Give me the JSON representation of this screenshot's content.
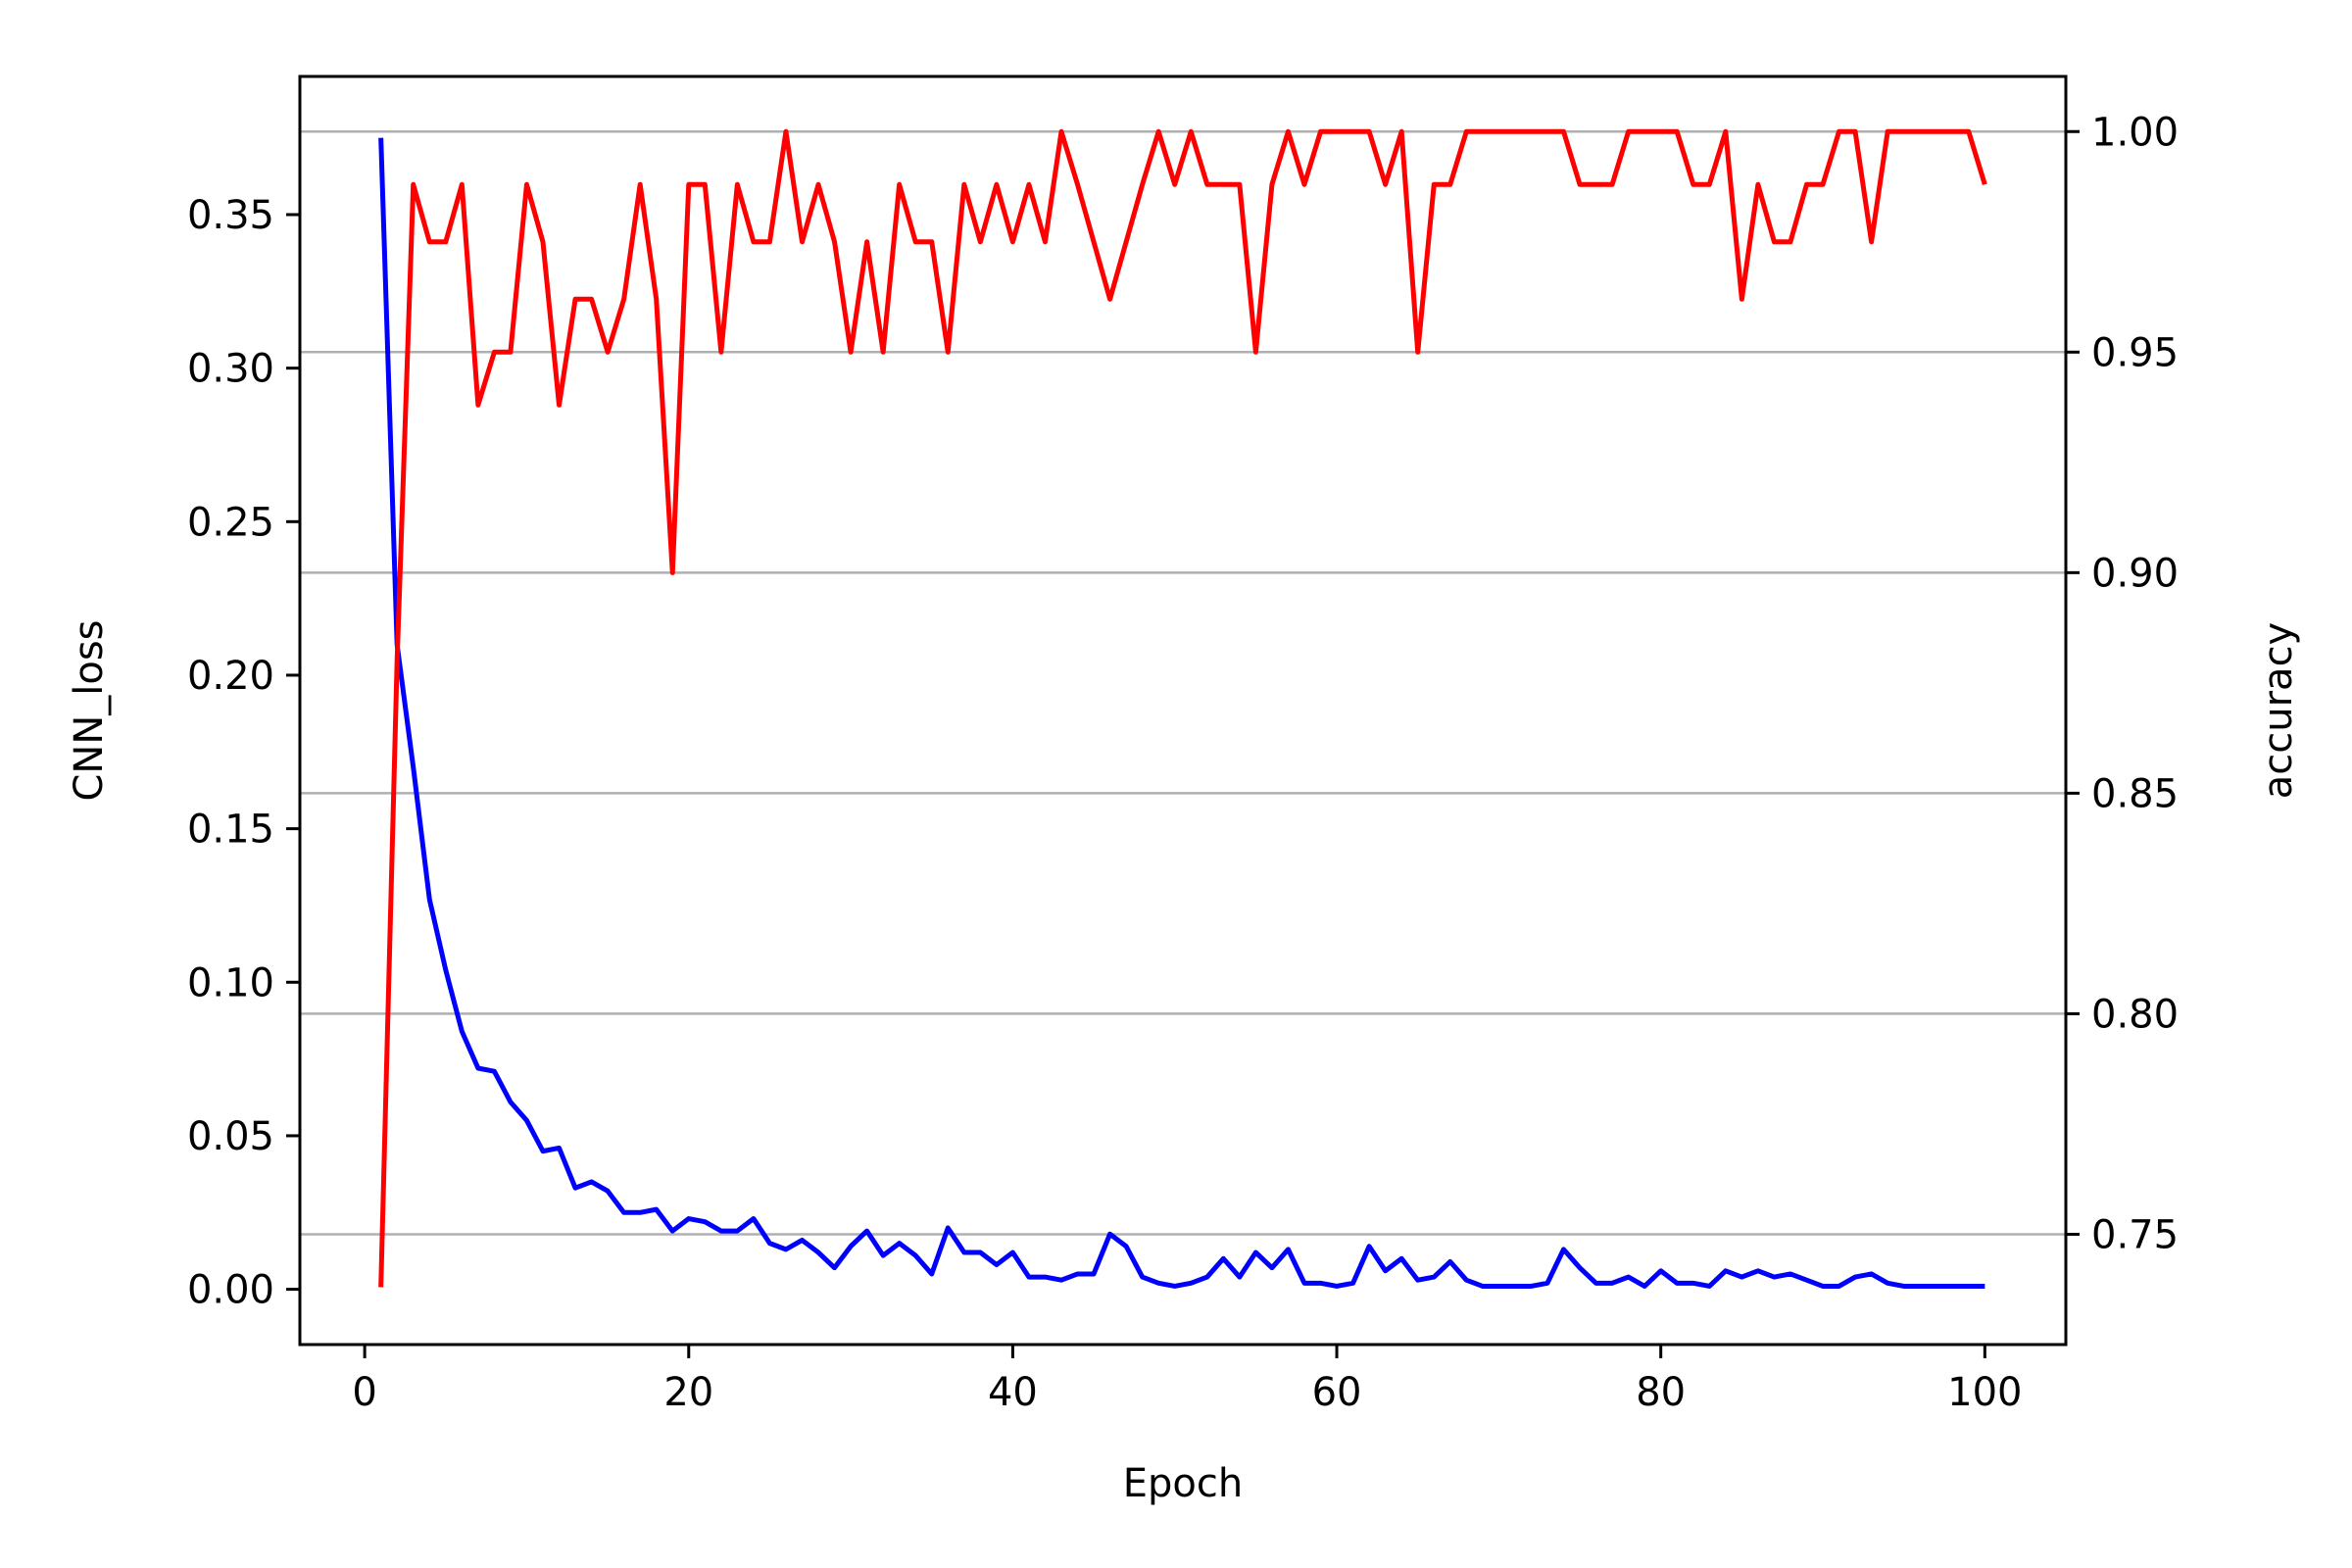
{
  "chart_data": {
    "type": "line",
    "title": "",
    "xlabel": "Epoch",
    "ylabel": "CNN_loss",
    "y2label": "accuracy",
    "xlim": [
      -4,
      105
    ],
    "ylim": [
      -0.018,
      0.395
    ],
    "y2lim": [
      0.725,
      1.0125
    ],
    "xticks": [
      "0",
      "20",
      "40",
      "60",
      "80",
      "100"
    ],
    "yticks": [
      "0.00",
      "0.05",
      "0.10",
      "0.15",
      "0.20",
      "0.25",
      "0.30",
      "0.35"
    ],
    "y2ticks": [
      "0.75",
      "0.80",
      "0.85",
      "0.90",
      "0.95",
      "1.00"
    ],
    "grid": "horizontal (right axis)",
    "series": [
      {
        "axis": "left",
        "color": "#0000ff",
        "x": [
          1,
          2,
          3,
          4,
          5,
          6,
          7,
          8,
          9,
          10,
          11,
          12,
          13,
          14,
          15,
          16,
          17,
          18,
          19,
          20,
          21,
          22,
          23,
          24,
          25,
          26,
          27,
          28,
          29,
          30,
          31,
          32,
          33,
          34,
          35,
          36,
          37,
          38,
          39,
          40,
          41,
          42,
          43,
          44,
          45,
          46,
          47,
          48,
          49,
          50,
          51,
          52,
          53,
          54,
          55,
          56,
          57,
          58,
          59,
          60,
          61,
          62,
          63,
          64,
          65,
          66,
          67,
          68,
          69,
          70,
          71,
          72,
          73,
          74,
          75,
          76,
          77,
          78,
          79,
          80,
          81,
          82,
          83,
          84,
          85,
          86,
          87,
          88,
          89,
          90,
          91,
          92,
          93,
          94,
          95,
          96,
          97,
          98,
          99,
          100
        ],
        "values": [
          0.375,
          0.21,
          0.17,
          0.127,
          0.104,
          0.084,
          0.072,
          0.071,
          0.061,
          0.055,
          0.045,
          0.046,
          0.033,
          0.035,
          0.032,
          0.025,
          0.025,
          0.026,
          0.019,
          0.023,
          0.022,
          0.019,
          0.019,
          0.023,
          0.015,
          0.013,
          0.016,
          0.012,
          0.007,
          0.014,
          0.019,
          0.011,
          0.015,
          0.011,
          0.005,
          0.02,
          0.012,
          0.012,
          0.008,
          0.012,
          0.004,
          0.004,
          0.003,
          0.005,
          0.005,
          0.018,
          0.014,
          0.004,
          0.002,
          0.001,
          0.002,
          0.004,
          0.01,
          0.004,
          0.012,
          0.007,
          0.013,
          0.002,
          0.002,
          0.001,
          0.002,
          0.014,
          0.006,
          0.01,
          0.003,
          0.004,
          0.009,
          0.003,
          0.001,
          0.001,
          0.001,
          0.001,
          0.002,
          0.013,
          0.007,
          0.002,
          0.002,
          0.004,
          0.001,
          0.006,
          0.002,
          0.002,
          0.001,
          0.006,
          0.004,
          0.006,
          0.004,
          0.005,
          0.003,
          0.001,
          0.001,
          0.004,
          0.005,
          0.002,
          0.001,
          0.001,
          0.001,
          0.001,
          0.001,
          0.001
        ]
      },
      {
        "axis": "right",
        "color": "#ff0000",
        "x": [
          1,
          2,
          3,
          4,
          5,
          6,
          7,
          8,
          9,
          10,
          11,
          12,
          13,
          14,
          15,
          16,
          17,
          18,
          19,
          20,
          21,
          22,
          23,
          24,
          25,
          26,
          27,
          28,
          29,
          30,
          31,
          32,
          33,
          34,
          35,
          36,
          37,
          38,
          39,
          40,
          41,
          42,
          43,
          44,
          45,
          46,
          47,
          48,
          49,
          50,
          51,
          52,
          53,
          54,
          55,
          56,
          57,
          58,
          59,
          60,
          61,
          62,
          63,
          64,
          65,
          66,
          67,
          68,
          69,
          70,
          71,
          72,
          73,
          74,
          75,
          76,
          77,
          78,
          79,
          80,
          81,
          82,
          83,
          84,
          85,
          86,
          87,
          88,
          89,
          90,
          91,
          92,
          93,
          94,
          95,
          96,
          97,
          98,
          99,
          100
        ],
        "values": [
          0.738,
          0.88,
          0.988,
          0.975,
          0.975,
          0.988,
          0.938,
          0.95,
          0.95,
          0.988,
          0.975,
          0.938,
          0.962,
          0.962,
          0.95,
          0.962,
          0.988,
          0.962,
          0.9,
          0.988,
          0.988,
          0.95,
          0.988,
          0.975,
          0.975,
          1.0,
          0.975,
          0.988,
          0.975,
          0.95,
          0.975,
          0.95,
          0.988,
          0.975,
          0.975,
          0.95,
          0.988,
          0.975,
          0.988,
          0.975,
          0.988,
          0.975,
          1.0,
          0.988,
          0.975,
          0.962,
          0.975,
          0.988,
          1.0,
          0.988,
          1.0,
          0.988,
          0.988,
          0.988,
          0.95,
          0.988,
          1.0,
          0.988,
          1.0,
          1.0,
          1.0,
          1.0,
          0.988,
          1.0,
          0.95,
          0.988,
          0.988,
          1.0,
          1.0,
          1.0,
          1.0,
          1.0,
          1.0,
          1.0,
          0.988,
          0.988,
          0.988,
          1.0,
          1.0,
          1.0,
          1.0,
          0.988,
          0.988,
          1.0,
          0.962,
          0.988,
          0.975,
          0.975,
          0.988,
          0.988,
          1.0,
          1.0,
          0.975,
          1.0,
          1.0,
          1.0,
          1.0,
          1.0,
          1.0,
          0.988
        ]
      }
    ]
  }
}
